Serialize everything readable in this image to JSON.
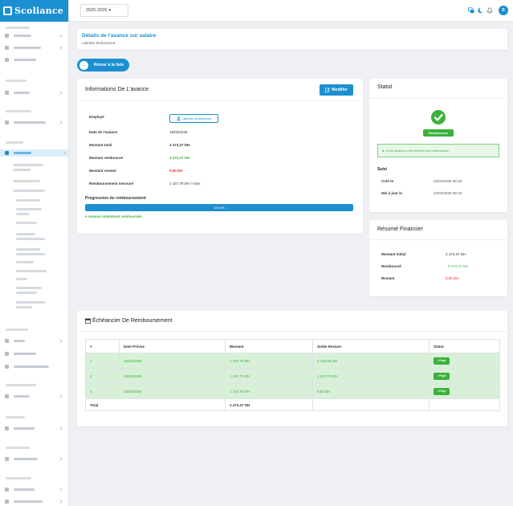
{
  "app": {
    "logo_text": "Scoliance"
  },
  "topbar": {
    "year": "2025-2026",
    "avatar_initial": "S"
  },
  "header": {
    "title": "Détails de l'avance sur salaire",
    "subtitle": "Lakhdar Mohammed"
  },
  "back_label": "Retour à la liste",
  "info": {
    "title": "Informations De L'avance",
    "edit_label": "Modifier",
    "employee_label": "Employé",
    "employee_name": "Lakhdar Mohammed",
    "rows": [
      {
        "label": "Date de l'avance",
        "value": "15/03/2026"
      },
      {
        "label": "Montant total",
        "value": "3 473,37 DH"
      },
      {
        "label": "Montant remboursé",
        "value": "3 473,37 DH"
      },
      {
        "label": "Montant restant",
        "value": "0,00 DH"
      },
      {
        "label": "Remboursement mensuel",
        "value": "1 157,79 DH / mois"
      }
    ],
    "progress_label": "Progression du remboursement",
    "progress_percent": 100,
    "progress_text": "100.0%",
    "progress_status": "Avance totalement remboursée"
  },
  "status": {
    "title": "Statut",
    "badge": "Remboursée",
    "alert": "Cette avance a été entièrement remboursée.",
    "followup_title": "Suivi",
    "followup": [
      {
        "label": "Créé le",
        "value": "22/04/2026 08:18"
      },
      {
        "label": "Mis à jour le",
        "value": "22/04/2026 08:18"
      }
    ]
  },
  "summary": {
    "title": "Résumé Financier",
    "rows": [
      {
        "label": "Montant initial",
        "value": "3 473,37 DH"
      },
      {
        "label": "Remboursé",
        "value": "- 3 473,37 DH"
      },
      {
        "label": "Restant",
        "value": "0,00 DH"
      }
    ]
  },
  "schedule": {
    "title": "Échéancier De Remboursement",
    "columns": [
      "#",
      "Date Prévue",
      "Montant",
      "Solde Restant",
      "Statut"
    ],
    "rows": [
      {
        "num": "1",
        "date": "15/04/2026",
        "amount": "1 157,79 DH",
        "balance": "2 315,58 DH",
        "status": "Payé"
      },
      {
        "num": "2",
        "date": "15/05/2026",
        "amount": "1 157,79 DH",
        "balance": "1 157,79 DH",
        "status": "Payé"
      },
      {
        "num": "3",
        "date": "15/06/2026",
        "amount": "1 157,79 DH",
        "balance": "0,00 DH",
        "status": "Payé"
      }
    ],
    "total_label": "Total",
    "total_amount": "3 473,37 DH"
  },
  "colors": {
    "primary": "#1b8fd1",
    "success": "#3bb13b",
    "danger": "#e0262f",
    "paid_row": "#d8f0d8"
  },
  "icons": [
    "user-icon",
    "edit-icon",
    "check-icon",
    "check-circle-icon",
    "calendar-icon",
    "arrow-left-icon",
    "translate-icon",
    "moon-icon",
    "bell-icon"
  ]
}
